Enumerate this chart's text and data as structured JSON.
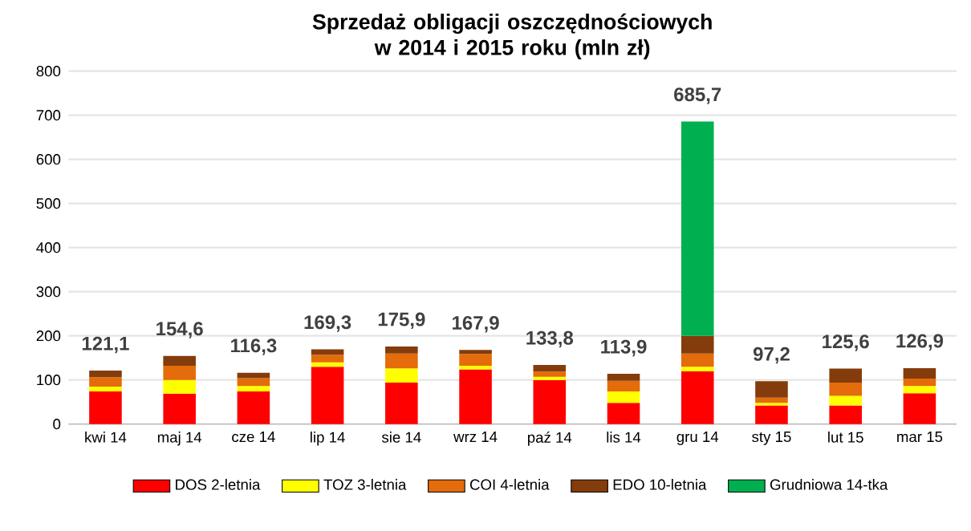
{
  "chart_data": {
    "type": "bar",
    "stacked": true,
    "title": "Sprzedaż obligacji oszczędnościowych w 2014 i 2015 roku (mln zł)",
    "categories": [
      "kwi 14",
      "maj 14",
      "cze 14",
      "lip 14",
      "sie 14",
      "wrz 14",
      "paź 14",
      "lis 14",
      "gru 14",
      "sty 15",
      "lut 15",
      "mar 15"
    ],
    "series": [
      {
        "name": "DOS 2-letnia",
        "color": "#ff0000",
        "values": [
          74,
          69,
          74,
          130,
          94,
          124,
          100,
          48,
          120,
          42,
          42,
          70
        ]
      },
      {
        "name": "TOZ 3-letnia",
        "color": "#ffff00",
        "values": [
          11,
          31,
          12,
          10,
          32,
          8,
          7,
          26,
          10,
          6,
          22,
          16
        ]
      },
      {
        "name": "COI 4-letnia",
        "color": "#e46c0a",
        "values": [
          21,
          32,
          18,
          17,
          34,
          27,
          12,
          24,
          30,
          12,
          30,
          17
        ]
      },
      {
        "name": "EDO 10-letnia",
        "color": "#843c0c",
        "values": [
          15.1,
          22.6,
          12.3,
          12.3,
          15.9,
          8.9,
          14.8,
          15.9,
          40,
          37.2,
          31.6,
          23.9
        ]
      },
      {
        "name": "Grudniowa 14-tka",
        "color": "#00b050",
        "values": [
          null,
          null,
          null,
          null,
          null,
          null,
          null,
          null,
          485.7,
          null,
          null,
          null
        ]
      }
    ],
    "totals": [
      "121,1",
      "154,6",
      "116,3",
      "169,3",
      "175,9",
      "167,9",
      "133,8",
      "113,9",
      "685,7",
      "97,2",
      "125,6",
      "126,9"
    ],
    "ylim": [
      0,
      800
    ],
    "yticks": [
      0,
      100,
      200,
      300,
      400,
      500,
      600,
      700,
      800
    ],
    "grid": "y",
    "legend": "bottom"
  }
}
